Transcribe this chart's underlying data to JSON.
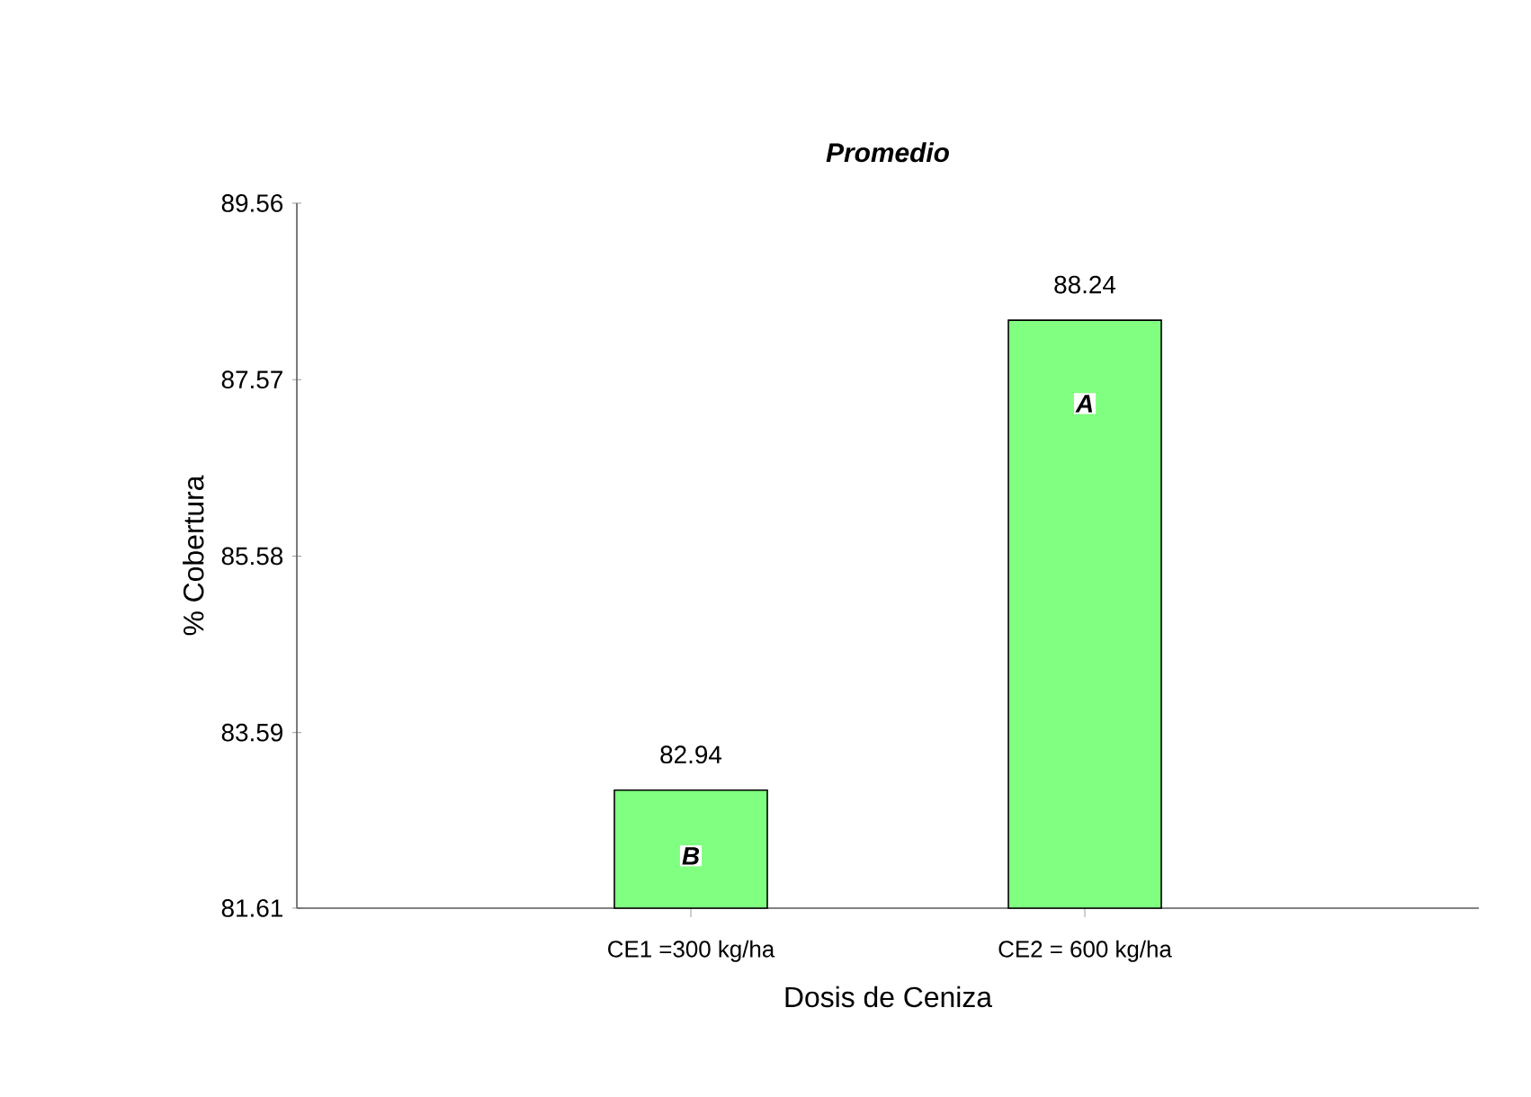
{
  "chart_data": {
    "type": "bar",
    "title": "Promedio",
    "xlabel": "Dosis de Ceniza",
    "ylabel": "% Cobertura",
    "categories": [
      "CE1 =300 kg/ha",
      "CE2 = 600 kg/ha"
    ],
    "values": [
      82.94,
      88.24
    ],
    "color": "#80ff80",
    "ylim": [
      81.61,
      89.56
    ],
    "yticks": [
      81.61,
      83.59,
      85.58,
      87.57,
      89.56
    ],
    "data_labels": true,
    "annotations": [
      {
        "text": "B",
        "x": "CE1 =300 kg/ha",
        "y": 82.2
      },
      {
        "text": "A",
        "x": "CE2 = 600 kg/ha",
        "y": 87.3
      }
    ]
  }
}
